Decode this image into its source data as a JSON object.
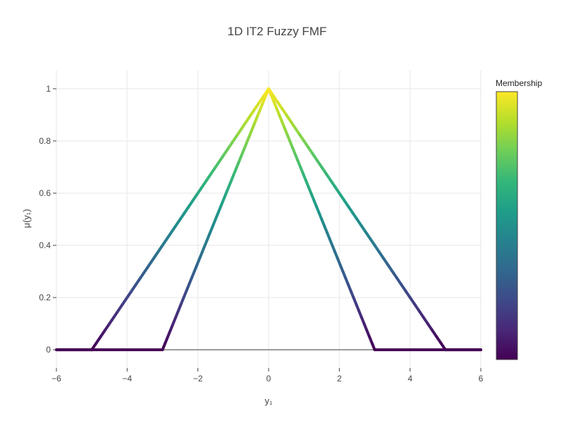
{
  "chart_data": {
    "type": "line",
    "title": "1D IT2 Fuzzy FMF",
    "xlabel": "y₁",
    "ylabel": "μ(y₁)",
    "xlim": [
      -6,
      6
    ],
    "ylim": [
      -0.07,
      1.07
    ],
    "x_ticks": [
      -6,
      -4,
      -2,
      0,
      2,
      4,
      6
    ],
    "x_tick_labels": [
      "−6",
      "−4",
      "−2",
      "0",
      "2",
      "4",
      "6"
    ],
    "y_ticks": [
      0,
      0.2,
      0.4,
      0.6,
      0.8,
      1
    ],
    "y_tick_labels": [
      "0",
      "0.2",
      "0.4",
      "0.6",
      "0.8",
      "1"
    ],
    "grid": true,
    "series": [
      {
        "x": [
          -6,
          -5,
          0,
          5,
          6
        ],
        "y": [
          0,
          0,
          1,
          0,
          0
        ]
      },
      {
        "x": [
          -6,
          -3,
          0,
          3,
          6
        ],
        "y": [
          0,
          0,
          1,
          0,
          0
        ]
      }
    ],
    "baseline": {
      "x": [
        -3,
        3
      ],
      "y": [
        0,
        0
      ],
      "color": "#999999"
    },
    "colorscale": "Viridis",
    "colorbar": {
      "title": "Membership",
      "range": [
        0,
        1
      ]
    },
    "colors": [
      "#440154",
      "#482878",
      "#3e4a89",
      "#31688e",
      "#26828e",
      "#1f9e89",
      "#35b779",
      "#6ece58",
      "#b5de2b",
      "#fde725"
    ]
  }
}
